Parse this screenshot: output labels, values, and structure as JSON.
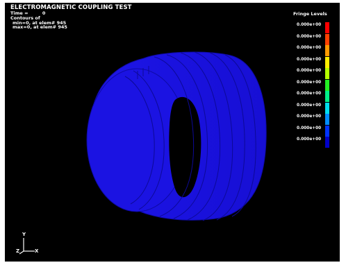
{
  "header": {
    "title": "ELECTROMAGNETIC COUPLING TEST",
    "time_label": "Time =",
    "time_value": "0",
    "contours_label": "Contours of",
    "min_text": "min=0, at elem# 945",
    "max_text": "max=0, at elem# 945"
  },
  "fringe": {
    "title": "Fringe Levels",
    "levels": [
      "0.000e+00",
      "0.000e+00",
      "0.000e+00",
      "0.000e+00",
      "0.000e+00",
      "0.000e+00",
      "0.000e+00",
      "0.000e+00",
      "0.000e+00",
      "0.000e+00",
      "0.000e+00"
    ],
    "colors": [
      "#ff0000",
      "#ff4000",
      "#ff9900",
      "#ffee00",
      "#b5ff00",
      "#22ee22",
      "#00ee88",
      "#00ddee",
      "#008cff",
      "#0033ff",
      "#0000c8"
    ]
  },
  "model": {
    "color": "#1a10dc",
    "edge_color": "#0b0890",
    "description_icon": "cylindrical-coil-model"
  },
  "triad": {
    "y_label": "Y",
    "z_label": "Z",
    "x_label": "X"
  }
}
